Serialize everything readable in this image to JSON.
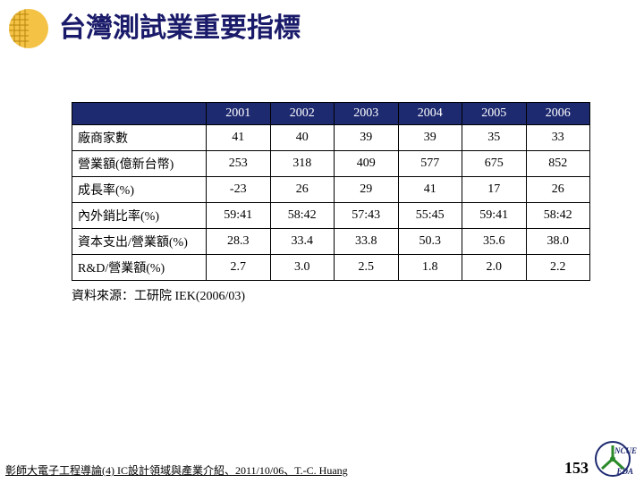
{
  "header": {
    "title": "台灣測試業重要指標",
    "title_color": "#1a1a6a",
    "logo_color": "#f0b030"
  },
  "table": {
    "header_bg": "#1e2a70",
    "header_fg": "#ffffff",
    "years": [
      "2001",
      "2002",
      "2003",
      "2004",
      "2005",
      "2006"
    ],
    "rows": [
      {
        "label": "廠商家數",
        "values": [
          "41",
          "40",
          "39",
          "39",
          "35",
          "33"
        ]
      },
      {
        "label": "營業額(億新台幣)",
        "values": [
          "253",
          "318",
          "409",
          "577",
          "675",
          "852"
        ]
      },
      {
        "label": "成長率(%)",
        "values": [
          "-23",
          "26",
          "29",
          "41",
          "17",
          "26"
        ]
      },
      {
        "label": "內外銷比率(%)",
        "values": [
          "59:41",
          "58:42",
          "57:43",
          "55:45",
          "59:41",
          "58:42"
        ]
      },
      {
        "label": "資本支出/營業額(%)",
        "values": [
          "28.3",
          "33.4",
          "33.8",
          "50.3",
          "35.6",
          "38.0"
        ]
      },
      {
        "label": "R&D/營業額(%)",
        "values": [
          "2.7",
          "3.0",
          "2.5",
          "1.8",
          "2.0",
          "2.2"
        ]
      }
    ],
    "source": "資料來源：工研院 IEK(2006/03)"
  },
  "footer": {
    "left": "彰師大電子工程導論(4) IC設計領域與產業介紹、2011/10/06、T.-C. Huang",
    "page": "153",
    "logo_t1": "NCUE",
    "logo_t2": "EDA"
  }
}
